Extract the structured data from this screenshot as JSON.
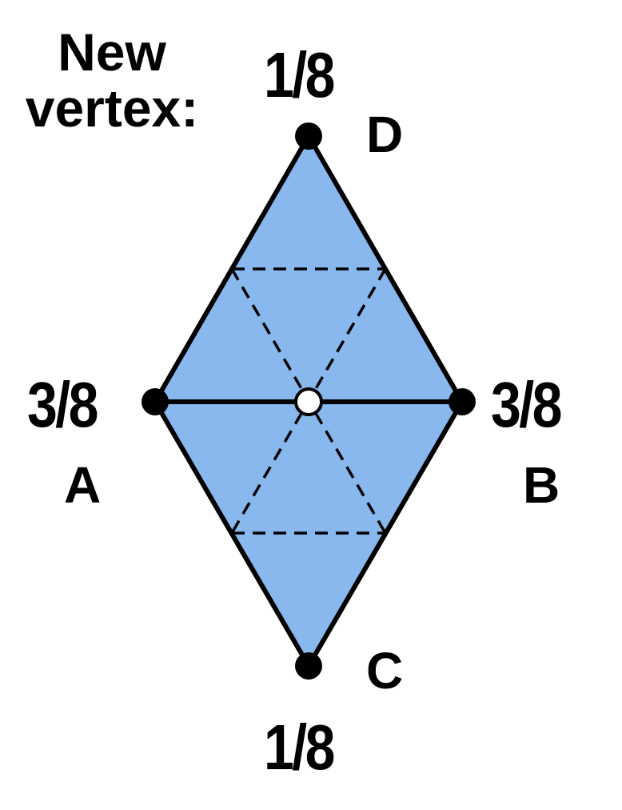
{
  "heading": {
    "line1": "New",
    "line2": "vertex:"
  },
  "vertices": {
    "D": {
      "letter": "D",
      "weight": "1/8"
    },
    "A": {
      "letter": "A",
      "weight": "3/8"
    },
    "B": {
      "letter": "B",
      "weight": "3/8"
    },
    "C": {
      "letter": "C",
      "weight": "1/8"
    }
  },
  "colors": {
    "fill": "#88b8ee",
    "edge": "#000000",
    "new_vertex_fill": "#ffffff"
  }
}
